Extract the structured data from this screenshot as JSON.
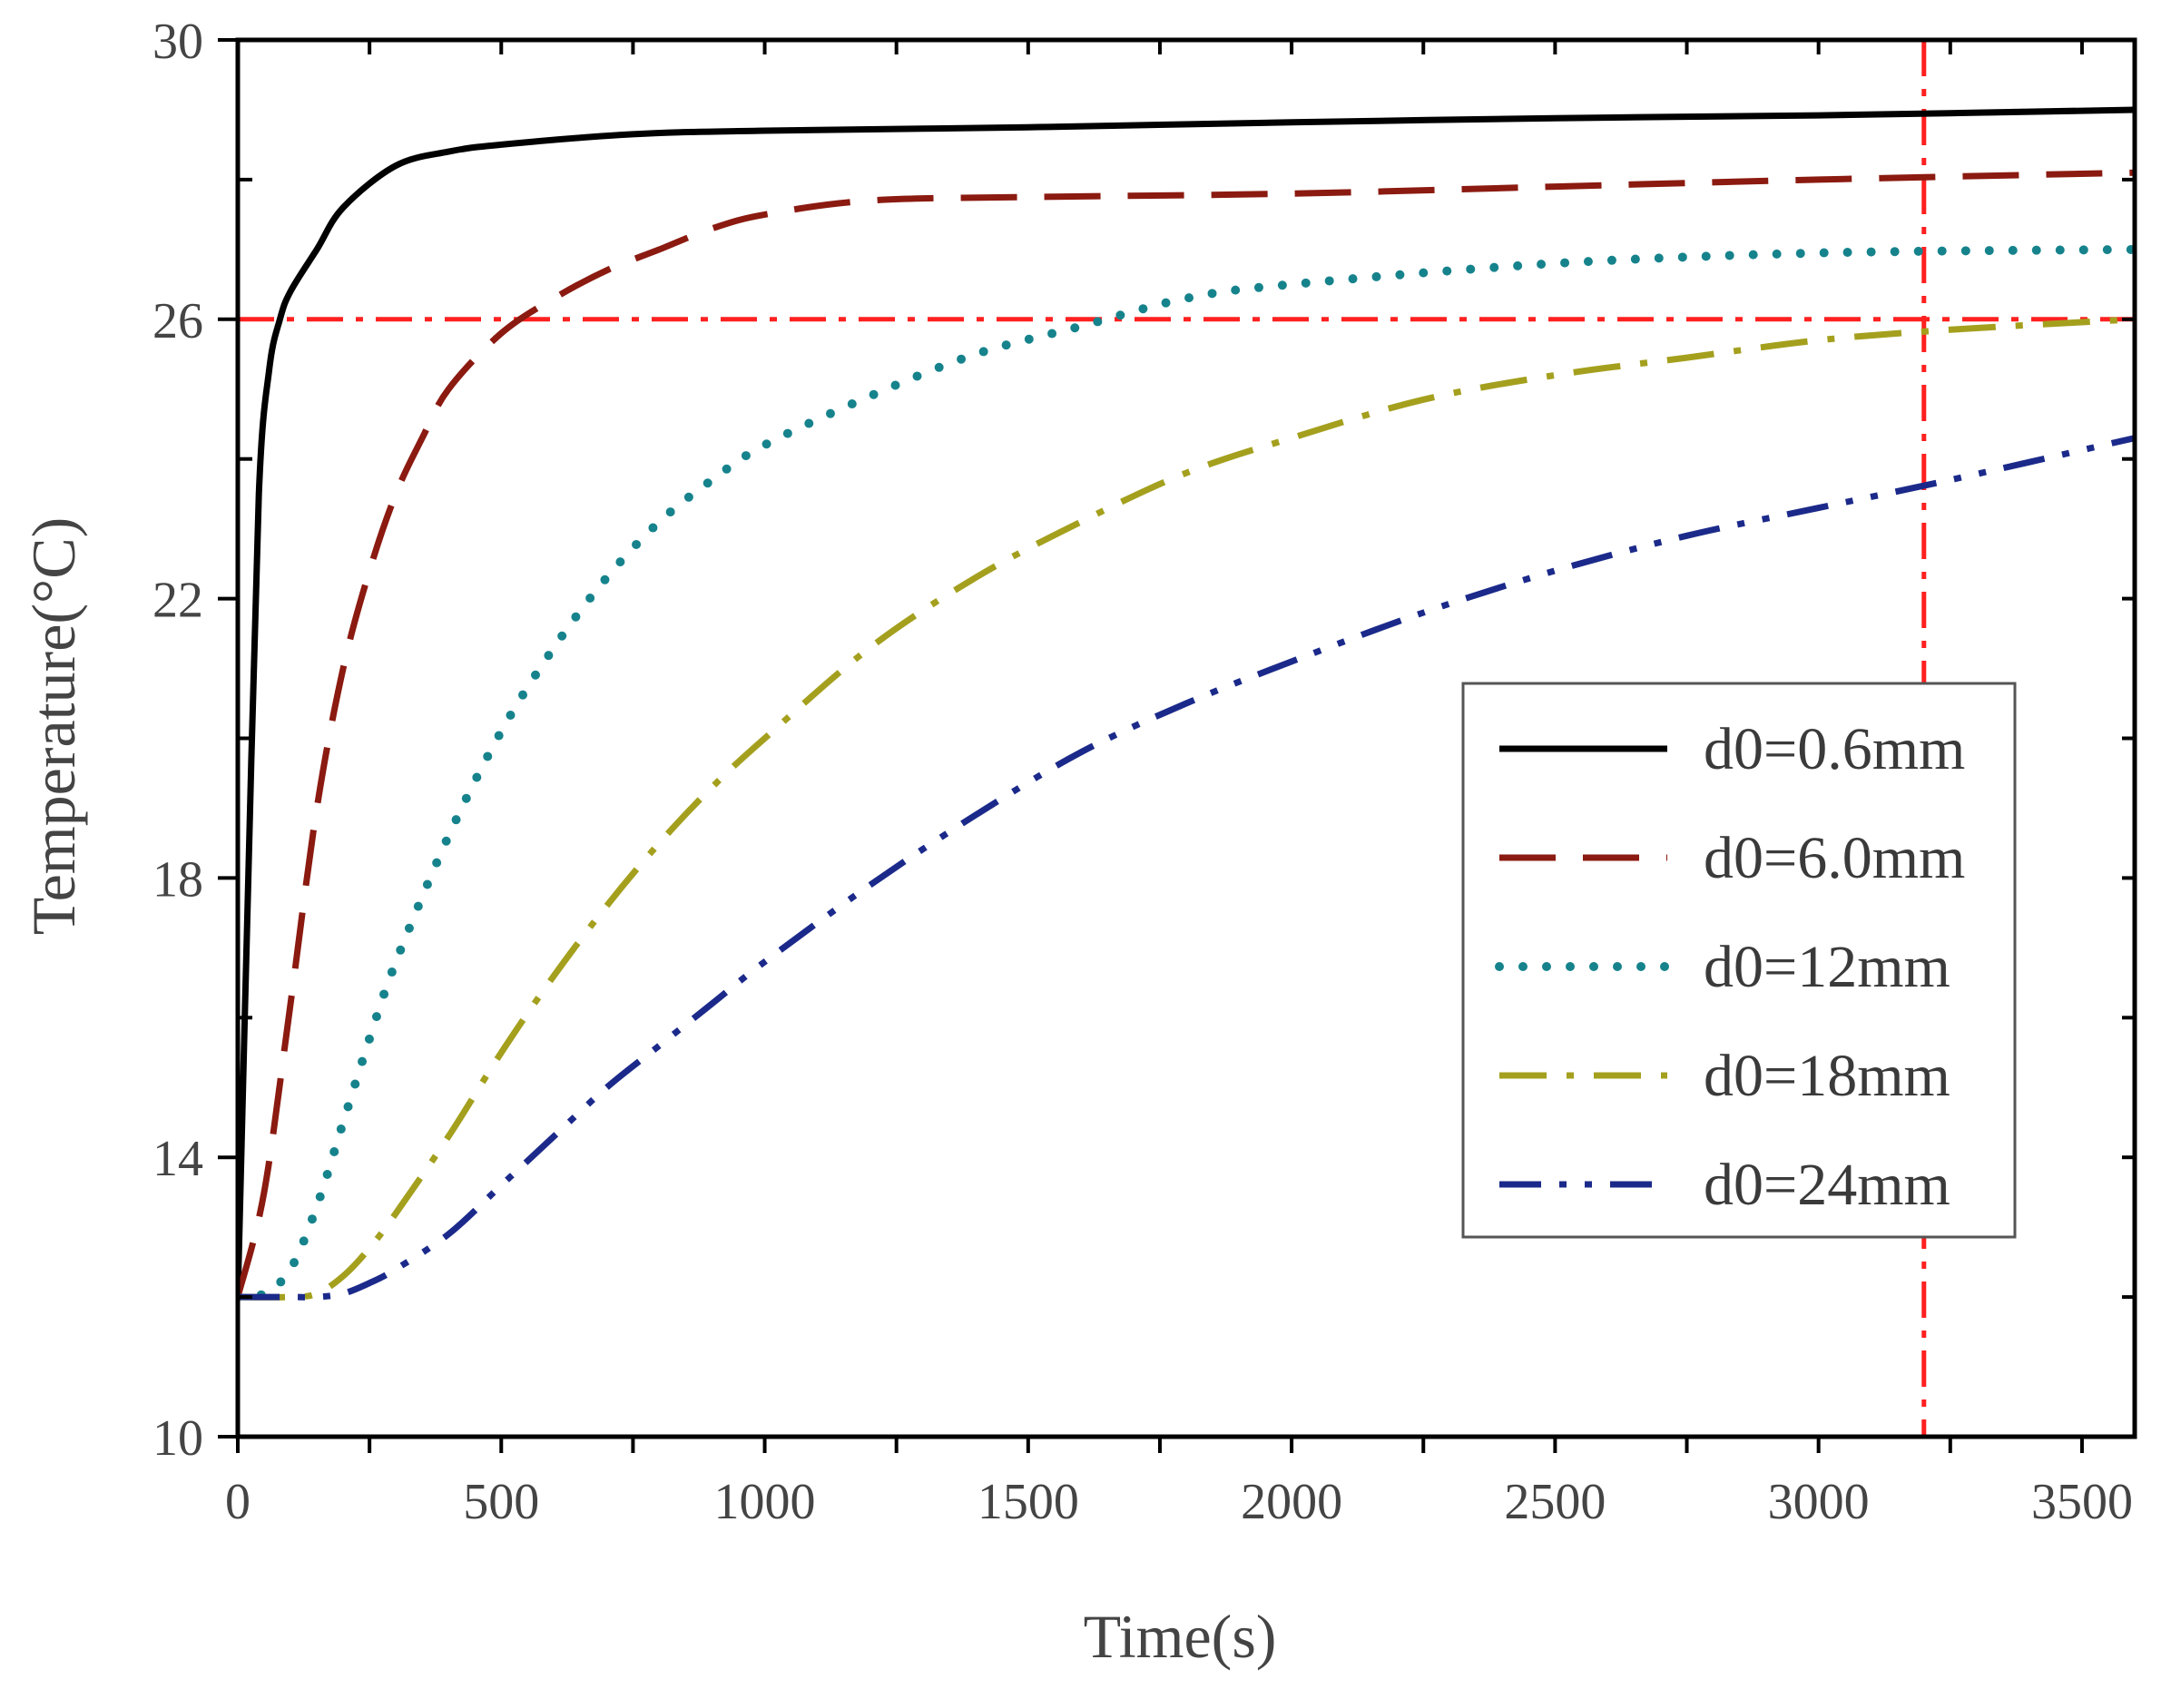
{
  "chart_data": {
    "type": "line",
    "title": "",
    "xlabel": "Time(s)",
    "ylabel": "Temperature(°C)",
    "xlim": [
      0,
      3600
    ],
    "ylim": [
      10,
      30
    ],
    "xticks": [
      0,
      500,
      1000,
      1500,
      2000,
      2500,
      3000,
      3500
    ],
    "xtick_labels": [
      "0",
      "500",
      "1000",
      "1500",
      "2000",
      "2500",
      "3000",
      "3500"
    ],
    "yticks": [
      10,
      14,
      18,
      22,
      26,
      30
    ],
    "ytick_labels": [
      "10",
      "14",
      "18",
      "22",
      "26",
      "30"
    ],
    "grid": false,
    "legend_position": "center-right",
    "series": [
      {
        "name": "d0=0.6mm",
        "color": "#000000",
        "dash": "solid",
        "x": [
          0,
          20,
          40,
          60,
          80,
          100,
          150,
          200,
          300,
          400,
          500,
          750,
          1000,
          1500,
          2000,
          2500,
          3000,
          3600
        ],
        "y": [
          12.0,
          18.0,
          23.5,
          25.3,
          26.0,
          26.4,
          27.0,
          27.6,
          28.2,
          28.4,
          28.5,
          28.65,
          28.7,
          28.75,
          28.82,
          28.88,
          28.92,
          29.0
        ]
      },
      {
        "name": "d0=6.0mm",
        "color": "#8B1A10",
        "dash": "long-dash",
        "x": [
          0,
          50,
          100,
          150,
          200,
          250,
          300,
          350,
          400,
          500,
          600,
          700,
          800,
          900,
          1000,
          1200,
          1500,
          2000,
          2500,
          3000,
          3600
        ],
        "y": [
          12.0,
          13.5,
          16.2,
          19.0,
          21.0,
          22.4,
          23.5,
          24.3,
          25.0,
          25.8,
          26.3,
          26.7,
          27.0,
          27.3,
          27.5,
          27.7,
          27.75,
          27.8,
          27.9,
          28.0,
          28.1
        ]
      },
      {
        "name": "d0=12mm",
        "color": "#16838C",
        "dash": "dotted",
        "x": [
          0,
          50,
          100,
          150,
          200,
          250,
          300,
          400,
          500,
          600,
          700,
          800,
          900,
          1000,
          1200,
          1400,
          1600,
          1800,
          2000,
          2500,
          3000,
          3600
        ],
        "y": [
          12.0,
          12.05,
          12.4,
          13.3,
          14.5,
          15.7,
          16.8,
          18.6,
          20.1,
          21.3,
          22.3,
          23.1,
          23.7,
          24.2,
          24.9,
          25.5,
          25.9,
          26.3,
          26.5,
          26.8,
          26.95,
          27.0
        ]
      },
      {
        "name": "d0=18mm",
        "color": "#A4A01E",
        "dash": "dash-dot",
        "x": [
          0,
          100,
          150,
          200,
          250,
          300,
          400,
          500,
          600,
          700,
          800,
          900,
          1000,
          1200,
          1400,
          1600,
          1800,
          2000,
          2250,
          2500,
          2750,
          3000,
          3250,
          3600
        ],
        "y": [
          12.0,
          12.0,
          12.05,
          12.3,
          12.7,
          13.2,
          14.3,
          15.5,
          16.6,
          17.6,
          18.5,
          19.3,
          20.0,
          21.3,
          22.3,
          23.1,
          23.8,
          24.3,
          24.85,
          25.2,
          25.45,
          25.7,
          25.85,
          26.0
        ]
      },
      {
        "name": "d0=24mm",
        "color": "#1B2A8A",
        "dash": "dash-dot-dot",
        "x": [
          0,
          100,
          150,
          200,
          250,
          300,
          400,
          500,
          600,
          700,
          800,
          900,
          1000,
          1200,
          1400,
          1600,
          1800,
          2000,
          2250,
          2500,
          2750,
          3000,
          3250,
          3600
        ],
        "y": [
          12.0,
          12.0,
          12.0,
          12.05,
          12.2,
          12.4,
          12.9,
          13.6,
          14.3,
          15.0,
          15.6,
          16.2,
          16.8,
          17.9,
          18.9,
          19.8,
          20.5,
          21.1,
          21.8,
          22.4,
          22.9,
          23.3,
          23.7,
          24.3
        ]
      }
    ],
    "reference_lines": [
      {
        "orientation": "horizontal",
        "value": 26,
        "color": "#FF2020",
        "dash": "dash-dot"
      },
      {
        "orientation": "vertical",
        "value": 3200,
        "color": "#FF2020",
        "dash": "dash-dot"
      }
    ]
  }
}
